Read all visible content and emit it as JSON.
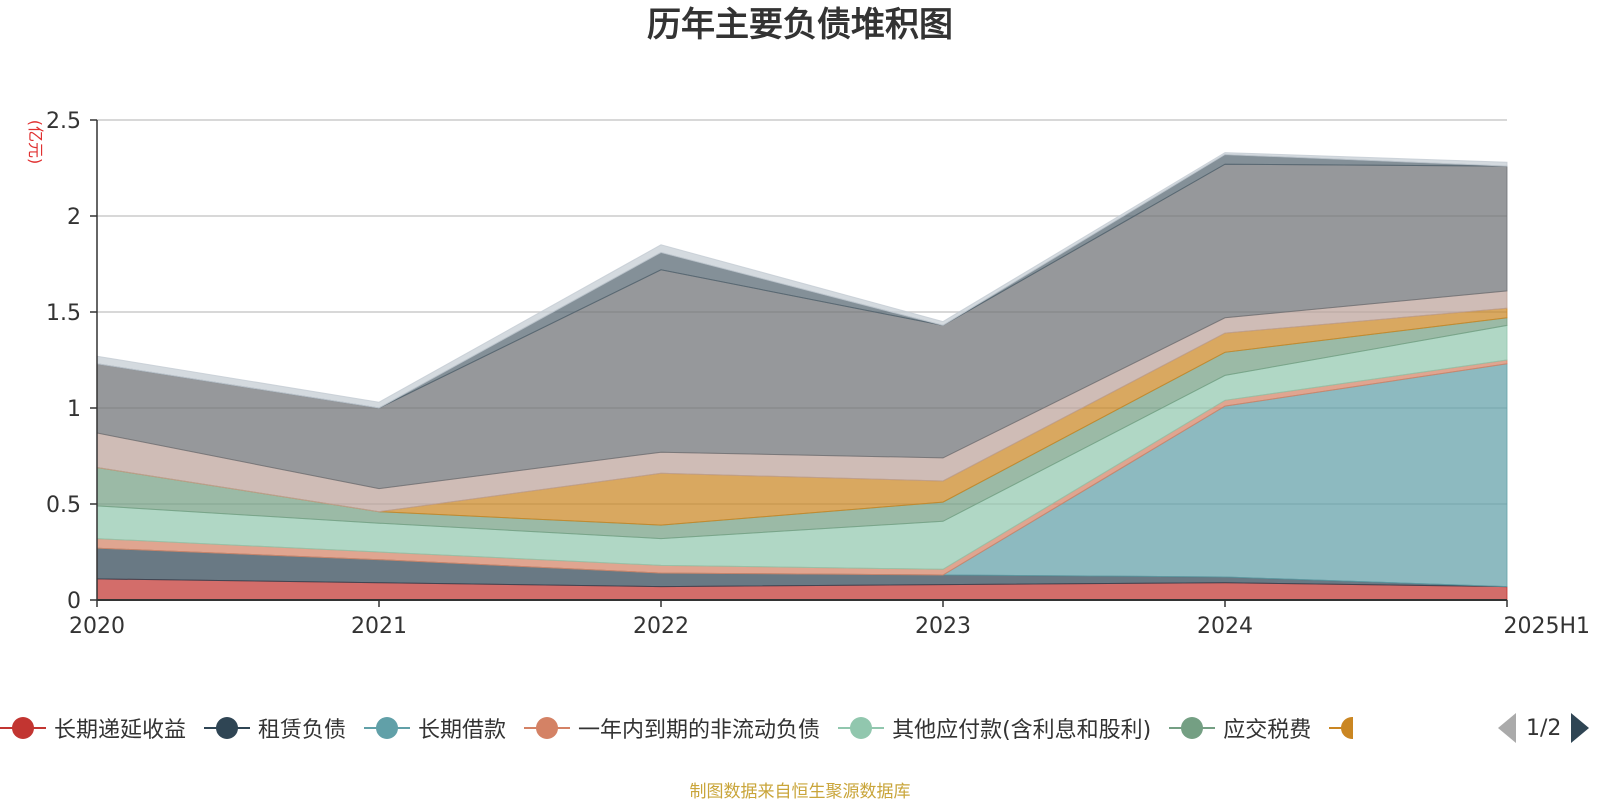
{
  "chart_data": {
    "type": "area",
    "title": "历年主要负债堆积图",
    "ylabel": "(亿元)",
    "xlabel": "",
    "categories": [
      "2020",
      "2021",
      "2022",
      "2023",
      "2024",
      "2025H1"
    ],
    "ylim": [
      0,
      2.5
    ],
    "yticks": [
      "0",
      "0.5",
      "1",
      "1.5",
      "2",
      "2.5"
    ],
    "stacked": true,
    "grid": true,
    "legend_position": "bottom",
    "series": [
      {
        "name": "长期递延收益",
        "color": "#c23531",
        "values": [
          0.11,
          0.09,
          0.07,
          0.08,
          0.09,
          0.07
        ]
      },
      {
        "name": "租赁负债",
        "color": "#2f4554",
        "values": [
          0.16,
          0.12,
          0.07,
          0.05,
          0.03,
          0.0
        ]
      },
      {
        "name": "长期借款",
        "color": "#61a0a8",
        "values": [
          0.0,
          0.0,
          0.0,
          0.0,
          0.89,
          1.16
        ]
      },
      {
        "name": "一年内到期的非流动负债",
        "color": "#d48265",
        "values": [
          0.05,
          0.04,
          0.04,
          0.03,
          0.03,
          0.02
        ]
      },
      {
        "name": "其他应付款(含利息和股利)",
        "color": "#91c7ae",
        "values": [
          0.17,
          0.15,
          0.14,
          0.25,
          0.13,
          0.18
        ]
      },
      {
        "name": "应交税费",
        "color": "#749f83",
        "values": [
          0.2,
          0.06,
          0.07,
          0.1,
          0.12,
          0.04
        ]
      },
      {
        "name": "",
        "color": "#ca8622",
        "values": [
          0.0,
          0.0,
          0.27,
          0.11,
          0.1,
          0.05
        ]
      },
      {
        "name": "",
        "color": "#bda29a",
        "values": [
          0.18,
          0.12,
          0.11,
          0.12,
          0.08,
          0.09
        ]
      },
      {
        "name": "",
        "color": "#6e7074",
        "values": [
          0.36,
          0.42,
          0.95,
          0.69,
          0.8,
          0.65
        ]
      },
      {
        "name": "",
        "color": "#546570",
        "values": [
          0.0,
          0.0,
          0.09,
          0.0,
          0.05,
          0.0
        ]
      },
      {
        "name": "",
        "color": "#c4ccd3",
        "values": [
          0.04,
          0.03,
          0.04,
          0.02,
          0.01,
          0.02
        ]
      }
    ]
  },
  "legend": {
    "page_indicator": "1/2",
    "clipped_item_color": "#ca8622"
  },
  "footer": {
    "source_note": "制图数据来自恒生聚源数据库"
  }
}
